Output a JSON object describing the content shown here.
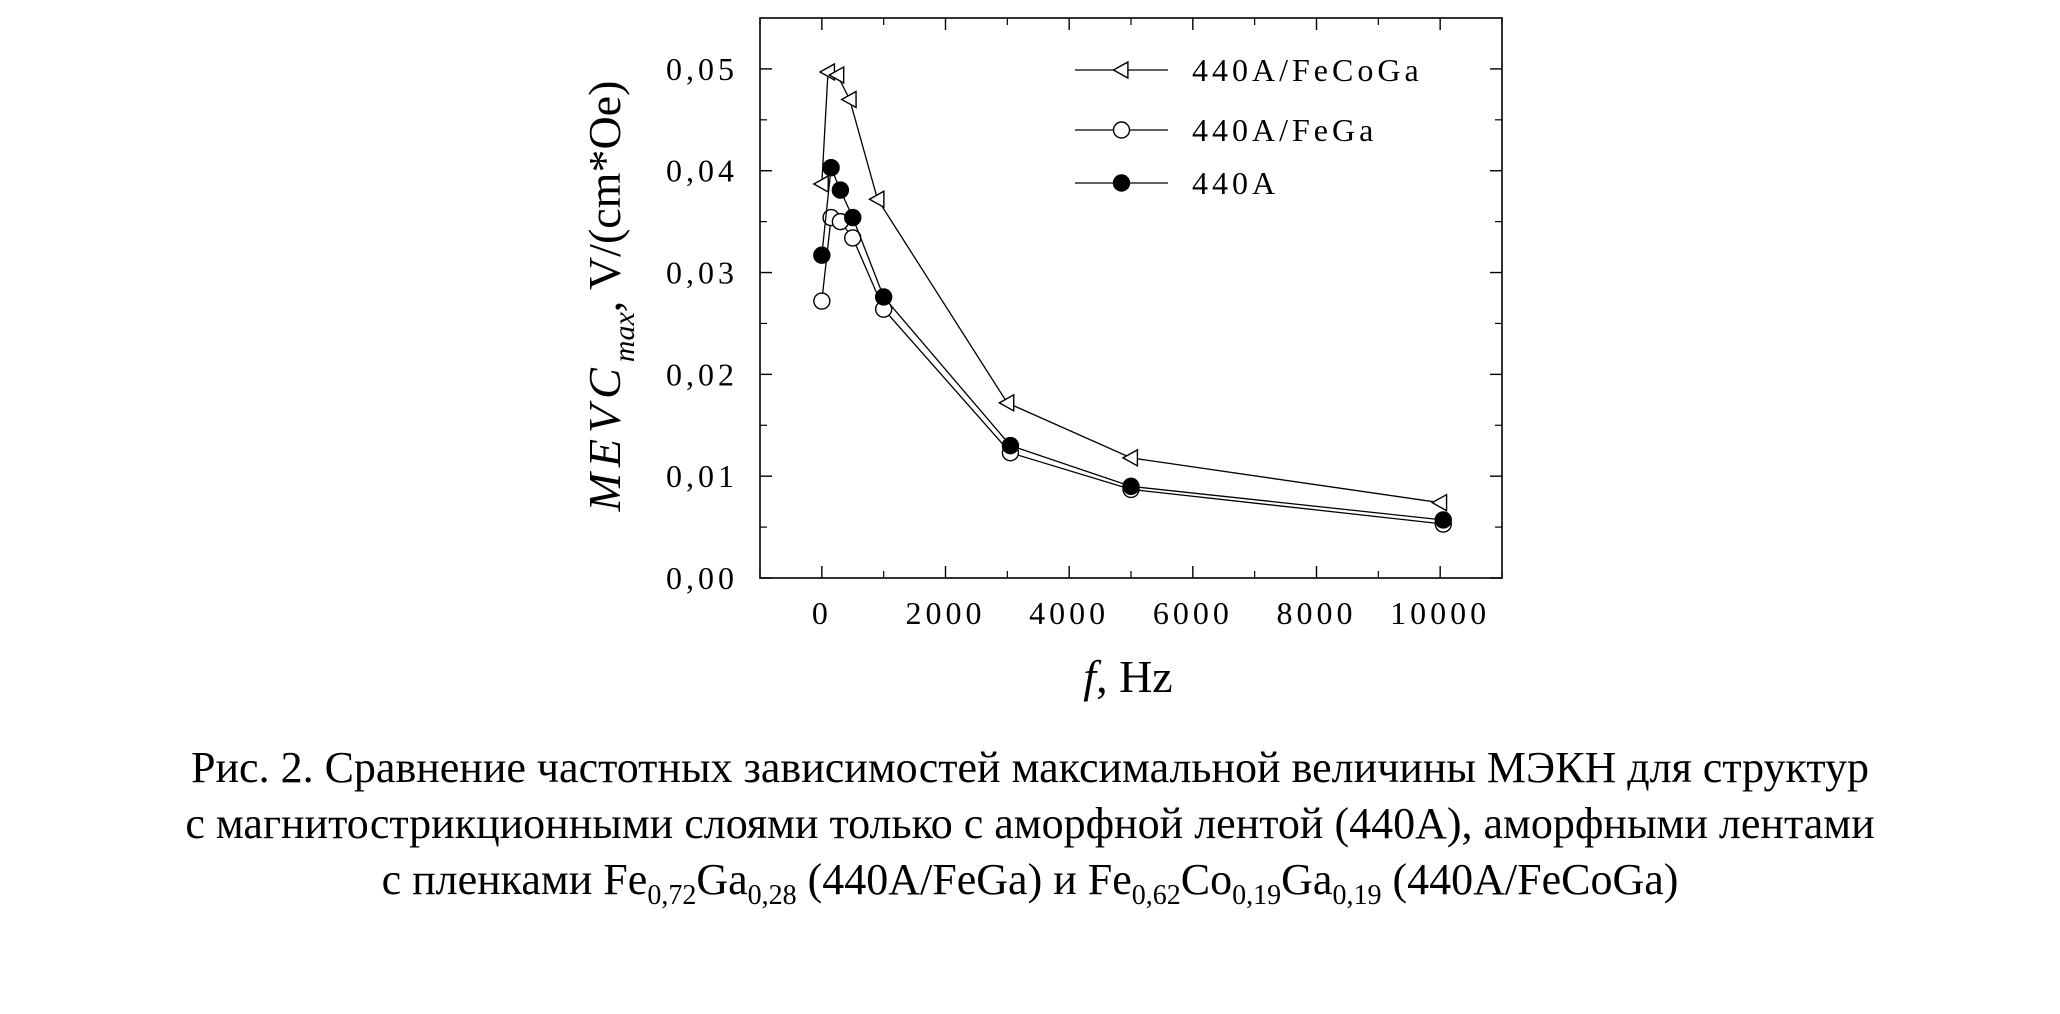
{
  "chart_data": {
    "type": "line",
    "xlabel": "f, Hz",
    "ylabel": "MEVC max, V/(cm*Oe)",
    "xlim": [
      -1000,
      11000
    ],
    "ylim": [
      0,
      0.055
    ],
    "x_ticks": [
      0,
      2000,
      4000,
      6000,
      8000,
      10000
    ],
    "x_tick_labels": [
      "0",
      "2000",
      "4000",
      "6000",
      "8000",
      "10000"
    ],
    "y_ticks": [
      0,
      0.01,
      0.02,
      0.03,
      0.04,
      0.05
    ],
    "y_tick_labels": [
      "0,00",
      "0,01",
      "0,02",
      "0,03",
      "0,04",
      "0,05"
    ],
    "grid": false,
    "legend_position": "top-right",
    "series": [
      {
        "name": "440A/FeCoGa",
        "marker": "triangle-left-open",
        "x": [
          0,
          100,
          250,
          450,
          900,
          3000,
          5000,
          10000
        ],
        "y": [
          0.0387,
          0.0497,
          0.0494,
          0.047,
          0.0372,
          0.0172,
          0.0118,
          0.0074
        ]
      },
      {
        "name": "440A/FeGa",
        "marker": "circle-open",
        "x": [
          0,
          150,
          300,
          500,
          1000,
          3050,
          5000,
          10050
        ],
        "y": [
          0.0272,
          0.0354,
          0.035,
          0.0334,
          0.0264,
          0.0123,
          0.0087,
          0.0053
        ]
      },
      {
        "name": "440A",
        "marker": "circle-filled",
        "x": [
          0,
          150,
          300,
          500,
          1000,
          3050,
          5000,
          10050
        ],
        "y": [
          0.0317,
          0.0403,
          0.0381,
          0.0354,
          0.0276,
          0.013,
          0.009,
          0.0057
        ]
      }
    ]
  },
  "caption": {
    "line1": "Рис. 2. Сравнение частотных зависимостей максимальной величины МЭКН для структур",
    "line2": "с магнитострикционными слоями только с аморфной лентой (440А), аморфными лентами",
    "line3_part1": "с пленками Fe",
    "line3_sub1": "0,72",
    "line3_part2": "Ga",
    "line3_sub2": "0,28",
    "line3_part3": " (440A/FeGa) и Fe",
    "line3_sub3": "0,62",
    "line3_part4": "Co",
    "line3_sub4": "0,19",
    "line3_part5": "Ga",
    "line3_sub5": "0,19",
    "line3_part6": " (440A/FeCoGa)"
  }
}
